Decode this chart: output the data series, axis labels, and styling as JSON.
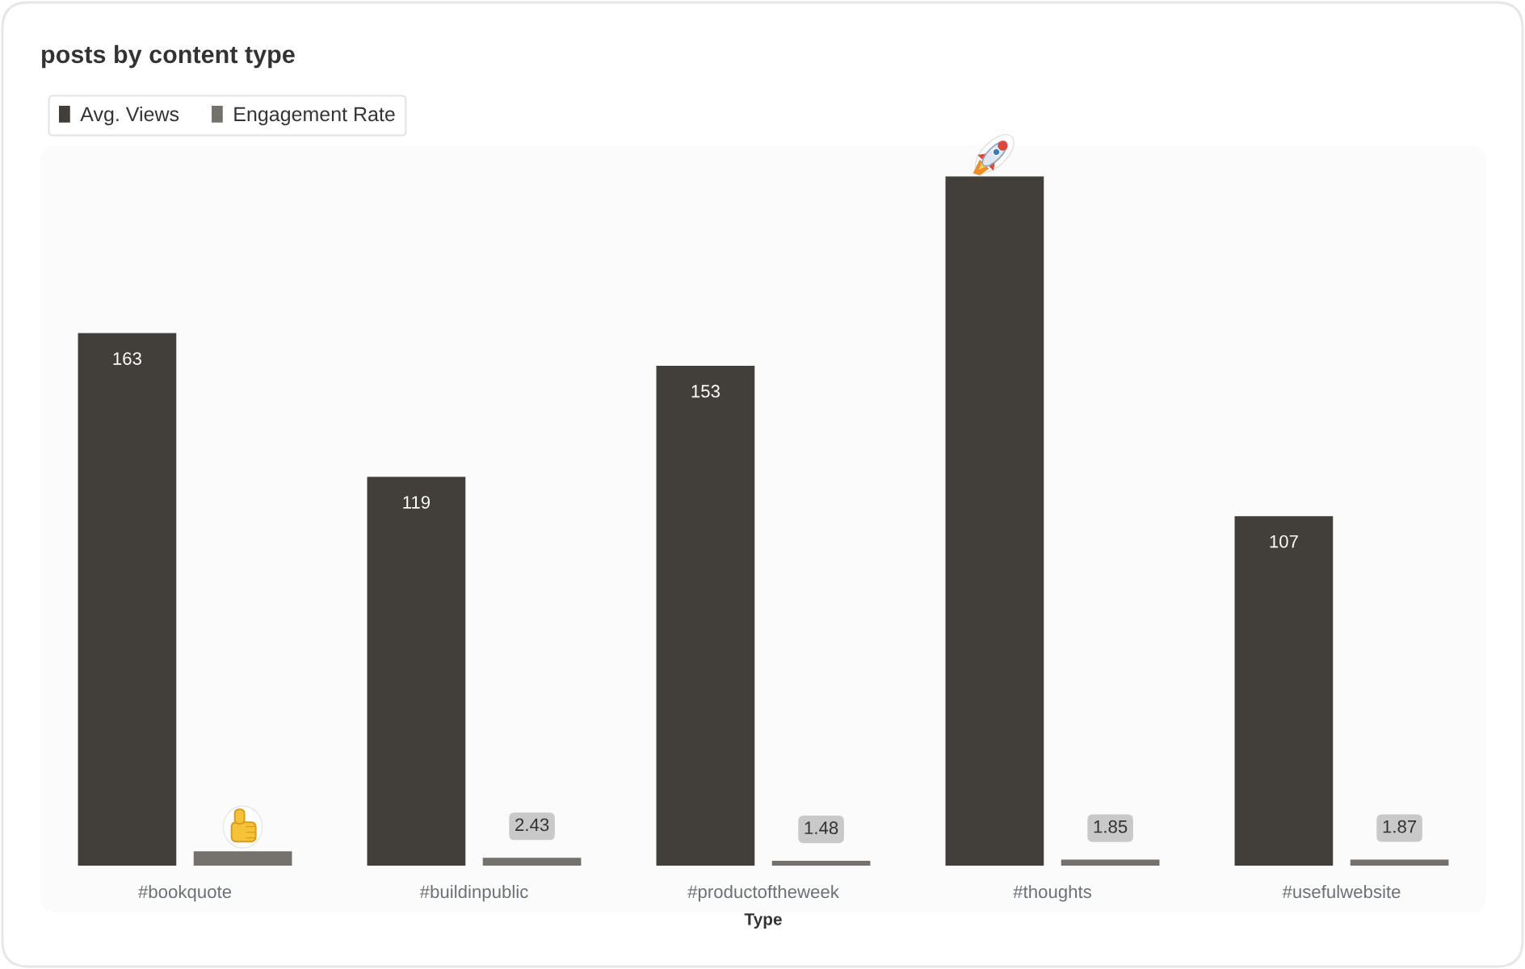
{
  "chart_data": {
    "type": "bar",
    "title": "posts by content type",
    "xlabel": "Type",
    "categories": [
      "#bookquote",
      "#buildinpublic",
      "#productoftheweek",
      "#thoughts",
      "#usefulwebsite"
    ],
    "series": [
      {
        "name": "Avg. Views",
        "color": "#423e3a",
        "values": [
          163,
          119,
          153,
          211,
          107
        ],
        "value_labels": [
          "163",
          "119",
          "153",
          null,
          "107"
        ]
      },
      {
        "name": "Engagement Rate",
        "color": "#75726e",
        "values": [
          4.4,
          2.43,
          1.48,
          1.85,
          1.87
        ],
        "value_labels": [
          null,
          "2.43",
          "1.48",
          "1.85",
          "1.87"
        ]
      }
    ],
    "legend": "top left",
    "tick_labels": "x",
    "grid": false
  }
}
